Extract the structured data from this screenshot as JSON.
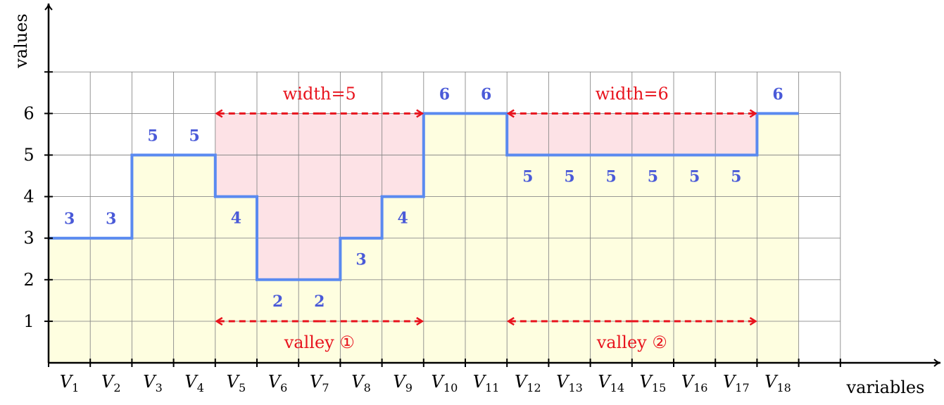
{
  "chart_data": {
    "type": "step",
    "xlabel": "variables",
    "ylabel": "values",
    "y_ticks": [
      "1",
      "2",
      "3",
      "4",
      "5",
      "6"
    ],
    "ylim": [
      0,
      7
    ],
    "variables": [
      "V1",
      "V2",
      "V3",
      "V4",
      "V5",
      "V6",
      "V7",
      "V8",
      "V9",
      "V10",
      "V11",
      "V12",
      "V13",
      "V14",
      "V15",
      "V16",
      "V17",
      "V18"
    ],
    "values": [
      3,
      3,
      5,
      5,
      4,
      2,
      2,
      3,
      4,
      6,
      6,
      5,
      5,
      5,
      5,
      5,
      5,
      6
    ],
    "value_label_positions": [
      "above",
      "above",
      "above",
      "above",
      "below",
      "below",
      "below",
      "below",
      "below",
      "above",
      "above",
      "below",
      "below",
      "below",
      "below",
      "below",
      "below",
      "above"
    ],
    "valleys": [
      {
        "label": "valley ①",
        "width_label": "width=5",
        "from_var": 5,
        "to_var": 9,
        "level": 6
      },
      {
        "label": "valley ②",
        "width_label": "width=6",
        "from_var": 12,
        "to_var": 17,
        "level": 6
      }
    ],
    "colors": {
      "line": "#5a8af0",
      "value_labels": "#4a5ad8",
      "fill_under": "#fefee0",
      "valley_fill": "#fde2e6",
      "annotation": "#e8141e",
      "grid": "#8a8a8a",
      "axis": "#000000"
    }
  }
}
